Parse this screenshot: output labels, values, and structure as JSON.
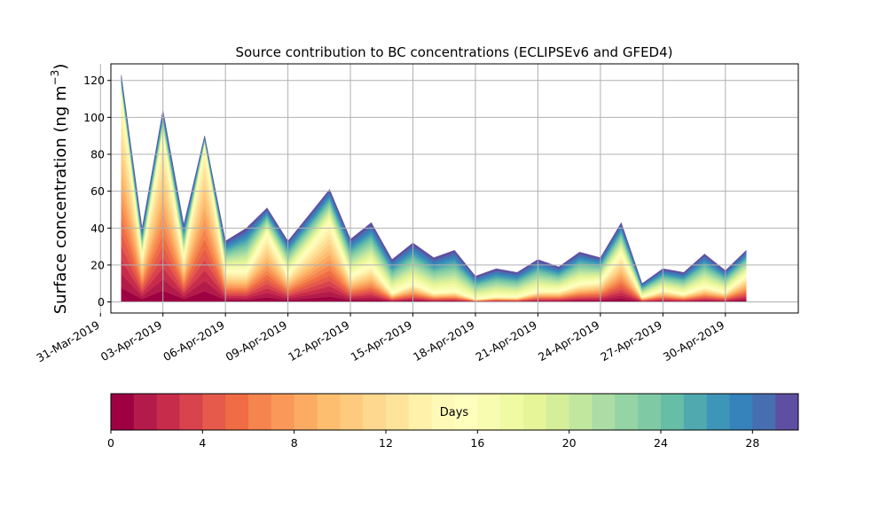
{
  "chart_data": {
    "type": "area",
    "subtype": "stacked area by source age",
    "title": "Source contribution to BC concentrations (ECLIPSEv6 and GFED4)",
    "ylabel_main": "Surface concentration (ng m",
    "ylabel_sup": "−3",
    "ylabel_close": ")",
    "xlabel": "",
    "ylim": [
      -6,
      129
    ],
    "x_range_days_from_start": [
      -0.5,
      32.5
    ],
    "grid": true,
    "yticks": [
      0,
      20,
      40,
      60,
      80,
      100,
      120
    ],
    "xtick_labels": [
      "31-Mar-2019",
      "03-Apr-2019",
      "06-Apr-2019",
      "09-Apr-2019",
      "12-Apr-2019",
      "15-Apr-2019",
      "18-Apr-2019",
      "21-Apr-2019",
      "24-Apr-2019",
      "27-Apr-2019",
      "30-Apr-2019"
    ],
    "x_dates": [
      "2019-04-01",
      "2019-04-02",
      "2019-04-03",
      "2019-04-04",
      "2019-04-05",
      "2019-04-06",
      "2019-04-07",
      "2019-04-08",
      "2019-04-09",
      "2019-04-10",
      "2019-04-11",
      "2019-04-12",
      "2019-04-13",
      "2019-04-14",
      "2019-04-15",
      "2019-04-16",
      "2019-04-17",
      "2019-04-18",
      "2019-04-19",
      "2019-04-20",
      "2019-04-21",
      "2019-04-22",
      "2019-04-23",
      "2019-04-24",
      "2019-04-25",
      "2019-04-26",
      "2019-04-27",
      "2019-04-28",
      "2019-04-29",
      "2019-04-30",
      "2019-05-01"
    ],
    "total_concentration": [
      123,
      40,
      104,
      42,
      90,
      33,
      40,
      51,
      33,
      47,
      61,
      34,
      43,
      23,
      32,
      24,
      28,
      14,
      18,
      16,
      23,
      19,
      27,
      24,
      43,
      10,
      18,
      16,
      26,
      17,
      28
    ],
    "age_0_to_15_days_share": [
      0.92,
      0.6,
      0.88,
      0.55,
      0.95,
      0.5,
      0.4,
      0.72,
      0.45,
      0.6,
      0.7,
      0.4,
      0.45,
      0.2,
      0.3,
      0.2,
      0.2,
      0.1,
      0.15,
      0.15,
      0.25,
      0.3,
      0.35,
      0.45,
      0.6,
      0.25,
      0.35,
      0.25,
      0.3,
      0.3,
      0.5
    ],
    "colorbar": {
      "label": "Days",
      "range": [
        0,
        30
      ],
      "levels": 30,
      "ticks": [
        "0",
        "4",
        "8",
        "12",
        "16",
        "20",
        "24",
        "28"
      ],
      "colors": [
        "#9e0142",
        "#b31b4b",
        "#c82c4b",
        "#d8434e",
        "#e55a4a",
        "#ef6c44",
        "#f5844e",
        "#f99858",
        "#fcab63",
        "#fdbe70",
        "#fecb7e",
        "#fed88e",
        "#fee49b",
        "#fff0aa",
        "#fff9b7",
        "#fefebd",
        "#f8fcb0",
        "#effaa3",
        "#e6f598",
        "#d4ee9a",
        "#c1e79f",
        "#abdda4",
        "#95d4a4",
        "#7fcaa5",
        "#66bea6",
        "#50a9af",
        "#3d95b8",
        "#3682ba",
        "#476eb0",
        "#5e4fa2"
      ]
    }
  }
}
